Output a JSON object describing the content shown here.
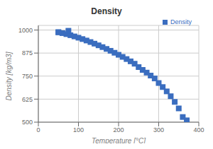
{
  "chart_data": {
    "type": "scatter",
    "title": "Density",
    "xlabel": "Temperature [°C]",
    "ylabel": "Density [kg/m3]",
    "xlim": [
      0,
      400
    ],
    "ylim": [
      500,
      1025
    ],
    "xticks": [
      0,
      100,
      200,
      300,
      400
    ],
    "yticks": [
      500,
      625,
      750,
      875,
      1000
    ],
    "grid": true,
    "legend": "upper right",
    "x": [
      50,
      60,
      70,
      80,
      90,
      100,
      110,
      120,
      130,
      140,
      150,
      160,
      170,
      180,
      190,
      200,
      210,
      220,
      230,
      240,
      250,
      260,
      270,
      280,
      290,
      300,
      310,
      320,
      330,
      340,
      350,
      360,
      370,
      50,
      75
    ],
    "series": [
      {
        "name": "Density",
        "color": "#3a6dbf",
        "marker": "square",
        "values": [
          988.1,
          983.2,
          977.8,
          971.8,
          965.3,
          958.4,
          951.0,
          943.1,
          934.8,
          926.1,
          917.0,
          907.4,
          897.5,
          887.3,
          876.6,
          865.7,
          854.3,
          842.5,
          830.1,
          817.2,
          799.0,
          783.6,
          769.0,
          752.8,
          737.2,
          712.4,
          690.6,
          667.1,
          640.8,
          610.0,
          574.7,
          528.0,
          510.0,
          988,
          996
        ]
      }
    ]
  }
}
